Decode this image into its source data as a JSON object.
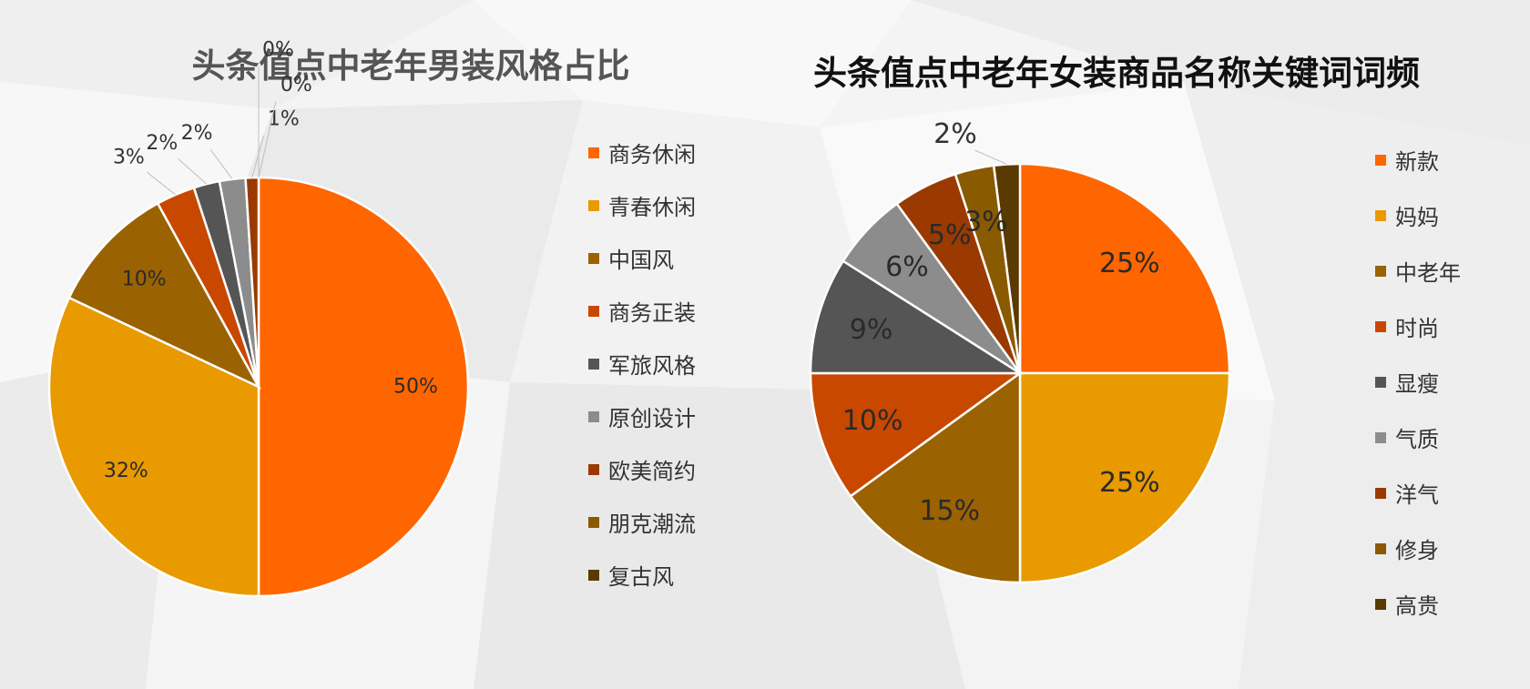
{
  "chart_data": [
    {
      "type": "pie",
      "title": "头条值点中老年男装风格占比",
      "categories": [
        "商务休闲",
        "青春休闲",
        "中国风",
        "商务正装",
        "军旅风格",
        "原创设计",
        "欧美简约",
        "朋克潮流",
        "复古风"
      ],
      "values": [
        50,
        32,
        10,
        3,
        2,
        2,
        1,
        0,
        0
      ],
      "labels": [
        "50%",
        "32%",
        "10%",
        "3%",
        "2%",
        "2%",
        "1%",
        "0%",
        "0%"
      ],
      "colors": [
        "#FF6600",
        "#E89A00",
        "#9A6200",
        "#C84800",
        "#555555",
        "#8C8C8C",
        "#9A3A00",
        "#8A5A00",
        "#5A3A00"
      ],
      "legend_position": "right"
    },
    {
      "type": "pie",
      "title": "头条值点中老年女装商品名称关键词词频",
      "categories": [
        "新款",
        "妈妈",
        "中老年",
        "时尚",
        "显瘦",
        "气质",
        "洋气",
        "修身",
        "高贵"
      ],
      "values": [
        25,
        25,
        15,
        10,
        9,
        6,
        5,
        3,
        2
      ],
      "labels": [
        "25%",
        "25%",
        "15%",
        "10%",
        "9%",
        "6%",
        "5%",
        "3%",
        "2%"
      ],
      "colors": [
        "#FF6600",
        "#E89A00",
        "#9A6200",
        "#C84800",
        "#555555",
        "#8C8C8C",
        "#9A3A00",
        "#8A5A00",
        "#5A3A00"
      ],
      "legend_position": "right"
    }
  ]
}
